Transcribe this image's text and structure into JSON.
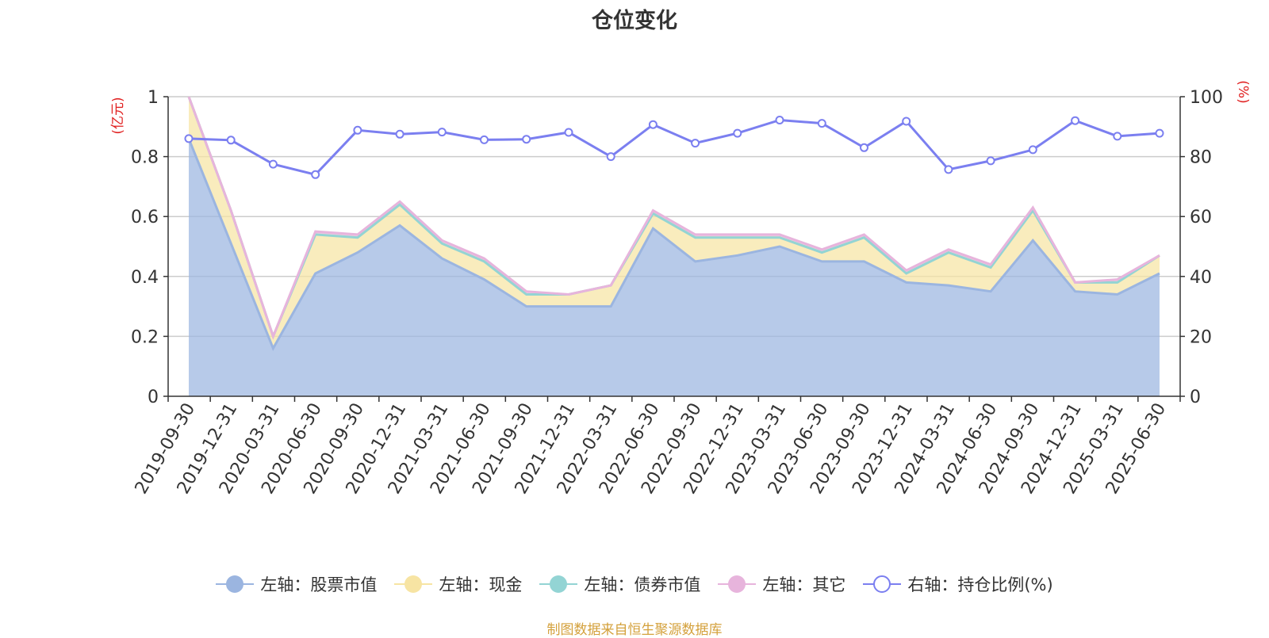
{
  "title": "仓位变化",
  "source_note": "制图数据来自恒生聚源数据库",
  "chart_data": {
    "type": "area",
    "title": "仓位变化",
    "categories": [
      "2019-09-30",
      "2019-12-31",
      "2020-03-31",
      "2020-06-30",
      "2020-09-30",
      "2020-12-31",
      "2021-03-31",
      "2021-06-30",
      "2021-09-30",
      "2021-12-31",
      "2022-03-31",
      "2022-06-30",
      "2022-09-30",
      "2022-12-31",
      "2023-03-31",
      "2023-06-30",
      "2023-09-30",
      "2023-12-31",
      "2024-03-31",
      "2024-06-30",
      "2024-09-30",
      "2024-12-31",
      "2025-03-31",
      "2025-06-30"
    ],
    "left_axis": {
      "unit": "(亿元)",
      "ylim": [
        0,
        1
      ],
      "ticks": [
        "0",
        "0.2",
        "0.4",
        "0.6",
        "0.8",
        "1"
      ]
    },
    "right_axis": {
      "unit": "(%)",
      "ylim": [
        0,
        100
      ],
      "ticks": [
        "0",
        "20",
        "40",
        "60",
        "80",
        "100"
      ]
    },
    "grid": true,
    "legend_position": "bottom",
    "stacked_series": [
      {
        "name": "左轴：股票市值",
        "color": "#9bb5e0",
        "values": [
          0.86,
          0.51,
          0.16,
          0.41,
          0.48,
          0.57,
          0.46,
          0.39,
          0.3,
          0.3,
          0.3,
          0.56,
          0.45,
          0.47,
          0.5,
          0.45,
          0.45,
          0.38,
          0.37,
          0.35,
          0.52,
          0.35,
          0.34,
          0.41
        ]
      },
      {
        "name": "左轴：现金",
        "color": "#f7e4a3",
        "values": [
          0.14,
          0.11,
          0.04,
          0.13,
          0.05,
          0.07,
          0.05,
          0.06,
          0.04,
          0.04,
          0.07,
          0.05,
          0.08,
          0.06,
          0.03,
          0.03,
          0.08,
          0.03,
          0.11,
          0.08,
          0.1,
          0.03,
          0.04,
          0.06
        ]
      },
      {
        "name": "左轴：债券市值",
        "color": "#93d4d4",
        "values": [
          0,
          0,
          0,
          0,
          0,
          0,
          0,
          0,
          0,
          0,
          0,
          0,
          0,
          0,
          0,
          0,
          0,
          0,
          0,
          0,
          0,
          0,
          0,
          0
        ]
      },
      {
        "name": "左轴：其它",
        "color": "#e7b4dc",
        "values": [
          0,
          0,
          0,
          0.01,
          0.01,
          0.01,
          0.01,
          0.01,
          0.01,
          0,
          0,
          0.01,
          0.01,
          0.01,
          0.01,
          0.01,
          0.01,
          0.01,
          0.01,
          0.01,
          0.01,
          0,
          0.01,
          0
        ]
      }
    ],
    "ratio_series": {
      "name": "右轴：持仓比例(%)",
      "color": "#7b7ff0",
      "values": [
        86,
        85.5,
        77.5,
        74,
        88.8,
        87.5,
        88.2,
        85.6,
        85.8,
        88.1,
        80,
        90.7,
        84.5,
        87.8,
        92.2,
        91.1,
        83,
        91.8,
        75.7,
        78.6,
        82.3,
        92,
        86.8,
        87.8
      ]
    }
  }
}
